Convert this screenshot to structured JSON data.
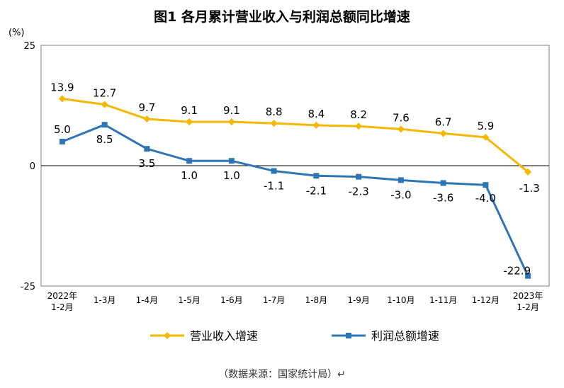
{
  "chart_data": {
    "type": "line",
    "title": "图1  各月累计营业收入与利润总额同比增速",
    "yunit": "(%)",
    "ylim": [
      -25,
      25
    ],
    "yticks": [
      "25",
      "0",
      "-25"
    ],
    "categories": [
      [
        "2022年",
        "1-2月"
      ],
      [
        "1-3月"
      ],
      [
        "1-4月"
      ],
      [
        "1-5月"
      ],
      [
        "1-6月"
      ],
      [
        "1-7月"
      ],
      [
        "1-8月"
      ],
      [
        "1-9月"
      ],
      [
        "1-10月"
      ],
      [
        "1-11月"
      ],
      [
        "1-12月"
      ],
      [
        "2023年",
        "1-2月"
      ]
    ],
    "series": [
      {
        "name": "营业收入增速",
        "color": "#F5B800",
        "marker": "diamond",
        "values": [
          13.9,
          12.7,
          9.7,
          9.1,
          9.1,
          8.8,
          8.4,
          8.2,
          7.6,
          6.7,
          5.9,
          -1.3
        ],
        "labels": [
          "13.9",
          "12.7",
          "9.7",
          "9.1",
          "9.1",
          "8.8",
          "8.4",
          "8.2",
          "7.6",
          "6.7",
          "5.9",
          "-1.3"
        ]
      },
      {
        "name": "利润总额增速",
        "color": "#2E75B6",
        "marker": "square",
        "values": [
          5.0,
          8.5,
          3.5,
          1.0,
          1.0,
          -1.1,
          -2.1,
          -2.3,
          -3.0,
          -3.6,
          -4.0,
          -22.9
        ],
        "labels": [
          "5.0",
          "8.5",
          "3.5",
          "1.0",
          "1.0",
          "-1.1",
          "-2.1",
          "-2.3",
          "-3.0",
          "-3.6",
          "-4.0",
          "-22.9"
        ]
      }
    ],
    "grid": false,
    "legend": "bottom"
  },
  "source": "（数据来源：国家统计局）↵"
}
